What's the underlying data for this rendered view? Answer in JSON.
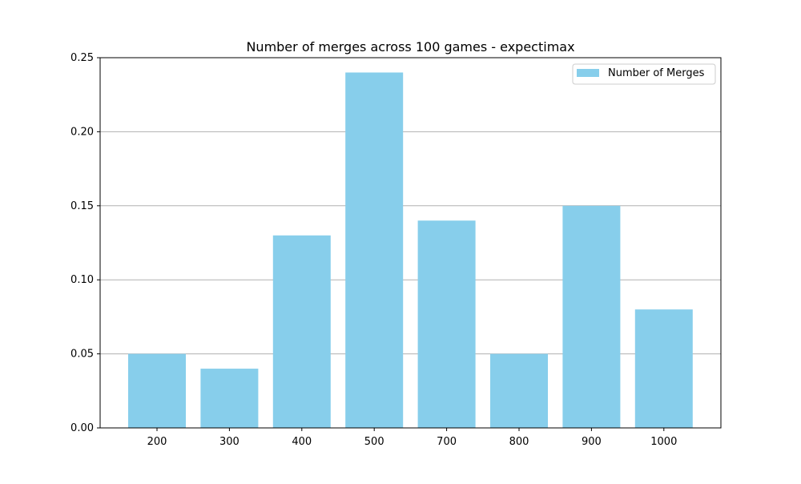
{
  "chart_data": {
    "type": "bar",
    "title": "Number of merges across 100 games - expectimax",
    "xlabel": "",
    "ylabel": "",
    "categories": [
      "200",
      "300",
      "400",
      "500",
      "700",
      "800",
      "900",
      "1000"
    ],
    "series": [
      {
        "name": "Number of Merges",
        "values": [
          0.05,
          0.04,
          0.13,
          0.24,
          0.14,
          0.05,
          0.15,
          0.08
        ],
        "color": "#87CEEB"
      }
    ],
    "ylim": [
      0,
      0.25
    ],
    "yticks": [
      "0.00",
      "0.05",
      "0.10",
      "0.15",
      "0.20",
      "0.25"
    ],
    "grid": "horizontal",
    "legend_position": "top-right"
  }
}
